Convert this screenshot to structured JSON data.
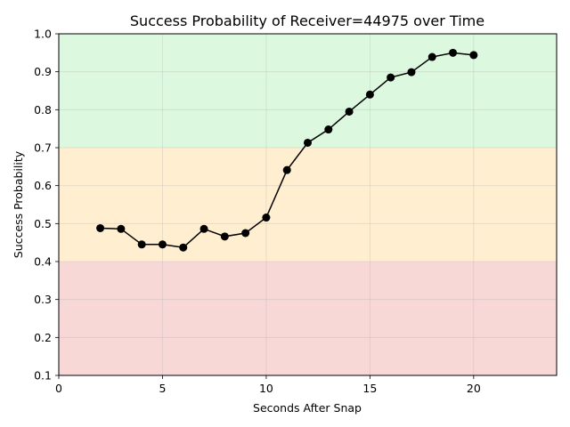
{
  "chart_data": {
    "type": "line",
    "title": "Success Probability of Receiver=44975 over Time",
    "xlabel": "Seconds After Snap",
    "ylabel": "Success Probability",
    "xlim": [
      0,
      24
    ],
    "ylim": [
      0.1,
      1.0
    ],
    "x_ticks": [
      0,
      5,
      10,
      15,
      20
    ],
    "y_ticks": [
      0.1,
      0.2,
      0.3,
      0.4,
      0.5,
      0.6,
      0.7,
      0.8,
      0.9,
      1.0
    ],
    "x_tick_labels": [
      "0",
      "5",
      "10",
      "15",
      "20"
    ],
    "y_tick_labels": [
      "0.1",
      "0.2",
      "0.3",
      "0.4",
      "0.5",
      "0.6",
      "0.7",
      "0.8",
      "0.9",
      "1.0"
    ],
    "grid": true,
    "bands": [
      {
        "from": 0.1,
        "to": 0.4,
        "color": "#f8d7d7"
      },
      {
        "from": 0.4,
        "to": 0.7,
        "color": "#ffeecf"
      },
      {
        "from": 0.7,
        "to": 1.0,
        "color": "#dcf8df"
      }
    ],
    "series": [
      {
        "color": "#000000",
        "x": [
          2,
          3,
          4,
          5,
          6,
          7,
          8,
          9,
          10,
          11,
          12,
          13,
          14,
          15,
          16,
          17,
          18,
          19,
          20
        ],
        "y": [
          0.488,
          0.486,
          0.445,
          0.445,
          0.437,
          0.486,
          0.466,
          0.475,
          0.516,
          0.641,
          0.713,
          0.748,
          0.795,
          0.84,
          0.885,
          0.899,
          0.939,
          0.95,
          0.944
        ]
      }
    ]
  }
}
